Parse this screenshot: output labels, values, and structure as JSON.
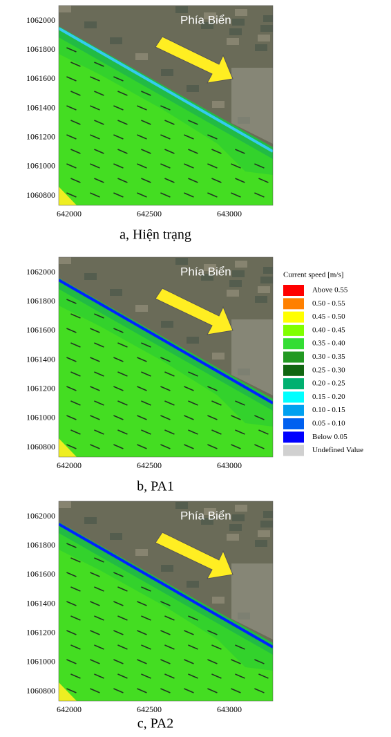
{
  "panels": [
    {
      "caption": "a, Hiện trạng",
      "label": "Phía Biển",
      "yticks": [
        1062000,
        1061800,
        1061600,
        1061400,
        1061200,
        1061000,
        1060800
      ],
      "xticks": [
        642000,
        642500,
        643000
      ]
    },
    {
      "caption": "b, PA1",
      "label": "Phía Biển",
      "yticks": [
        1062000,
        1061800,
        1061600,
        1061400,
        1061200,
        1061000,
        1060800
      ],
      "xticks": [
        642000,
        642500,
        643000
      ]
    },
    {
      "caption": "c, PA2",
      "label": "Phía Biển",
      "yticks": [
        1062000,
        1061800,
        1061600,
        1061400,
        1061200,
        1061000,
        1060800
      ],
      "xticks": [
        642000,
        642500,
        643000
      ]
    }
  ],
  "legend": {
    "title": "Current speed [m/s]",
    "items": [
      {
        "label": "Above 0.55",
        "color": "#ff0000"
      },
      {
        "label": "0.50 - 0.55",
        "color": "#ff8000"
      },
      {
        "label": "0.45 - 0.50",
        "color": "#ffff00"
      },
      {
        "label": "0.40 - 0.45",
        "color": "#80ff00"
      },
      {
        "label": "0.35 - 0.40",
        "color": "#33dd33"
      },
      {
        "label": "0.30 - 0.35",
        "color": "#229922"
      },
      {
        "label": "0.25 - 0.30",
        "color": "#116611"
      },
      {
        "label": "0.20 - 0.25",
        "color": "#00b070"
      },
      {
        "label": "0.15 - 0.20",
        "color": "#00ffff"
      },
      {
        "label": "0.10 - 0.15",
        "color": "#00a0f0"
      },
      {
        "label": "0.05 - 0.10",
        "color": "#0060f0"
      },
      {
        "label": "Below 0.05",
        "color": "#0000ff"
      },
      {
        "label": "Undefined Value",
        "color": "#d0d0d0"
      }
    ]
  }
}
